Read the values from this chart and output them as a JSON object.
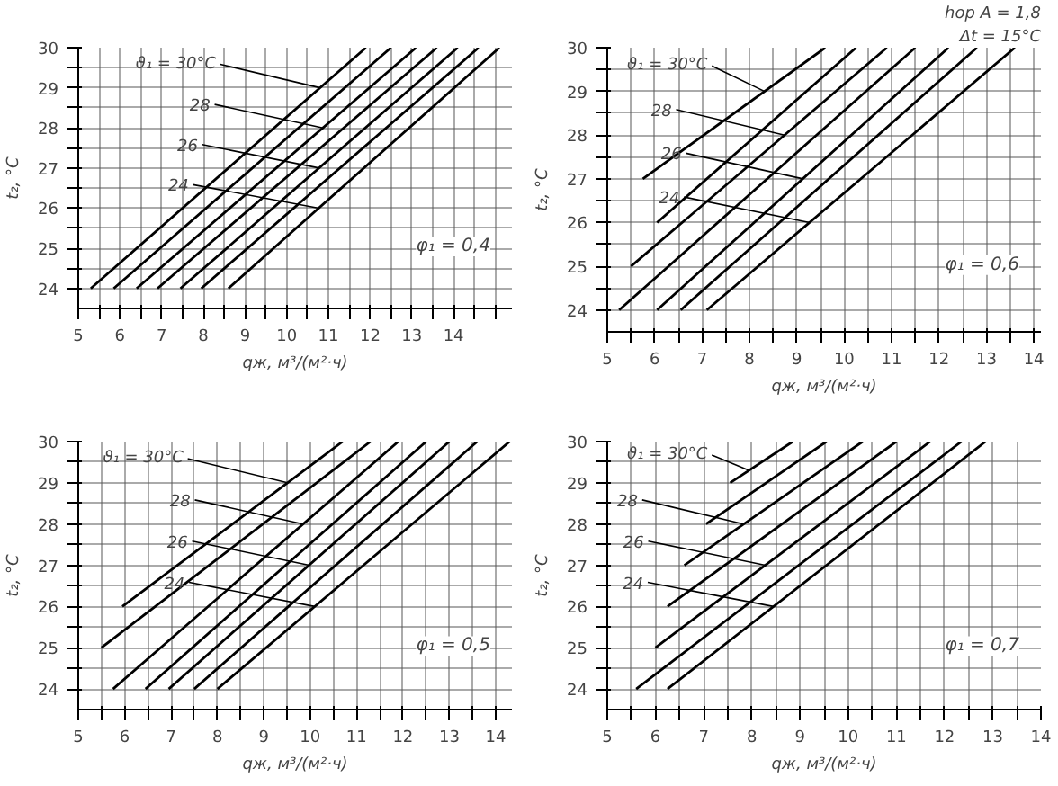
{
  "chart_data": [
    {
      "type": "line",
      "xlabel": "qж, м³/(м²·ч)",
      "ylabel": "t₂, °C",
      "xlim": [
        5,
        15.4
      ],
      "ylim": [
        23.5,
        30
      ],
      "annotations": [
        {
          "text": "ϑ₁ = 30°C",
          "x": 10.8,
          "y": 29
        },
        {
          "text": "28",
          "x": 10.87,
          "y": 28
        },
        {
          "text": "26",
          "x": 10.78,
          "y": 27
        },
        {
          "text": "24",
          "x": 10.77,
          "y": 26
        },
        "φ₁ = 0,4"
      ],
      "xticks": [
        5,
        {
          "value": 5.5,
          "label": null
        },
        6,
        {
          "value": 6.5,
          "label": null
        },
        7,
        {
          "value": 7.5,
          "label": null
        },
        8,
        {
          "value": 8.5,
          "label": null
        },
        9,
        {
          "value": 9.5,
          "label": null
        },
        10,
        {
          "value": 10.5,
          "label": null
        },
        11,
        {
          "value": 11.5,
          "label": null
        },
        12,
        {
          "value": 12.5,
          "label": null
        },
        13,
        {
          "value": 13.5,
          "label": null
        },
        14,
        {
          "value": 14.5,
          "label": null
        },
        {
          "value": 15,
          "label": null
        }
      ],
      "yticks": [
        24,
        {
          "value": 24.5,
          "label": null
        },
        25,
        {
          "value": 25.5,
          "label": null
        },
        26,
        {
          "value": 26.5,
          "label": null
        },
        27,
        {
          "value": 27.5,
          "label": null
        },
        28,
        {
          "value": 28.5,
          "label": null
        },
        29,
        {
          "value": 29.5,
          "label": null
        },
        30
      ],
      "grid": true,
      "line_style": "solid",
      "marker": "none",
      "series": [
        {
          "color": "#000000",
          "x": [
            5.3,
            11.9
          ],
          "values": [
            24,
            30
          ]
        },
        {
          "color": "#000000",
          "x": [
            5.85,
            12.5
          ],
          "values": [
            24,
            30
          ]
        },
        {
          "color": "#000000",
          "x": [
            6.4,
            13.1
          ],
          "values": [
            24,
            30
          ]
        },
        {
          "color": "#000000",
          "x": [
            6.9,
            13.6
          ],
          "values": [
            24,
            30
          ]
        },
        {
          "color": "#000000",
          "x": [
            7.45,
            14.1
          ],
          "values": [
            24,
            30
          ]
        },
        {
          "color": "#000000",
          "x": [
            7.95,
            14.6
          ],
          "values": [
            24,
            30
          ]
        },
        {
          "color": "#000000",
          "x": [
            8.6,
            15.1
          ],
          "values": [
            24,
            30
          ]
        }
      ]
    },
    {
      "type": "line",
      "xlabel": "qж, м³/(м²·ч)",
      "ylabel": "t₂, °C",
      "xlim": [
        5,
        14.15
      ],
      "ylim": [
        23.5,
        30
      ],
      "annotations": [
        "hор A = 1,8",
        "Δt = 15°C",
        {
          "text": "ϑ₁ = 30°C",
          "x": 8.32,
          "y": 29
        },
        {
          "text": "28",
          "x": 8.74,
          "y": 28
        },
        {
          "text": "26",
          "x": 9.13,
          "y": 27
        },
        {
          "text": "24",
          "x": 9.27,
          "y": 26
        },
        "φ₁ = 0,6"
      ],
      "xticks": [
        5,
        {
          "value": 5.5,
          "label": null
        },
        6,
        {
          "value": 6.5,
          "label": null
        },
        7,
        {
          "value": 7.5,
          "label": null
        },
        8,
        {
          "value": 8.5,
          "label": null
        },
        9,
        {
          "value": 9.5,
          "label": null
        },
        10,
        {
          "value": 10.5,
          "label": null
        },
        11,
        {
          "value": 11.5,
          "label": null
        },
        12,
        {
          "value": 12.5,
          "label": null
        },
        13,
        {
          "value": 13.5,
          "label": null
        },
        14
      ],
      "yticks": [
        24,
        {
          "value": 24.5,
          "label": null
        },
        25,
        {
          "value": 25.5,
          "label": null
        },
        26,
        {
          "value": 26.5,
          "label": null
        },
        27,
        {
          "value": 27.5,
          "label": null
        },
        28,
        {
          "value": 28.5,
          "label": null
        },
        29,
        {
          "value": 29.5,
          "label": null
        },
        30
      ],
      "grid": true,
      "line_style": "solid",
      "marker": "none",
      "series": [
        {
          "color": "#000000",
          "x": [
            5.75,
            9.6
          ],
          "values": [
            27,
            30
          ]
        },
        {
          "color": "#000000",
          "x": [
            6.05,
            10.25
          ],
          "values": [
            26,
            30
          ]
        },
        {
          "color": "#000000",
          "x": [
            5.5,
            10.9
          ],
          "values": [
            25,
            30
          ]
        },
        {
          "color": "#000000",
          "x": [
            5.25,
            11.5
          ],
          "values": [
            24,
            30
          ]
        },
        {
          "color": "#000000",
          "x": [
            6.05,
            12.2
          ],
          "values": [
            24,
            30
          ]
        },
        {
          "color": "#000000",
          "x": [
            6.55,
            12.8
          ],
          "values": [
            24,
            30
          ]
        },
        {
          "color": "#000000",
          "x": [
            7.1,
            13.6
          ],
          "values": [
            24,
            30
          ]
        }
      ]
    },
    {
      "type": "line",
      "xlabel": "qж, м³/(м²·ч)",
      "ylabel": "t₂, °C",
      "xlim": [
        5,
        14.35
      ],
      "ylim": [
        23.5,
        30
      ],
      "annotations": [
        {
          "text": "ϑ₁ = 30°C",
          "x": 9.51,
          "y": 29
        },
        {
          "text": "28",
          "x": 9.85,
          "y": 28
        },
        {
          "text": "26",
          "x": 9.98,
          "y": 27
        },
        {
          "text": "24",
          "x": 10.1,
          "y": 26
        },
        "φ₁ = 0,5"
      ],
      "xticks": [
        5,
        {
          "value": 5.5,
          "label": null
        },
        6,
        {
          "value": 6.5,
          "label": null
        },
        7,
        {
          "value": 7.5,
          "label": null
        },
        8,
        {
          "value": 8.5,
          "label": null
        },
        9,
        {
          "value": 9.5,
          "label": null
        },
        10,
        {
          "value": 10.5,
          "label": null
        },
        11,
        {
          "value": 11.5,
          "label": null
        },
        12,
        {
          "value": 12.5,
          "label": null
        },
        13,
        {
          "value": 13.5,
          "label": null
        },
        14
      ],
      "yticks": [
        24,
        {
          "value": 24.5,
          "label": null
        },
        25,
        {
          "value": 25.5,
          "label": null
        },
        26,
        {
          "value": 26.5,
          "label": null
        },
        27,
        {
          "value": 27.5,
          "label": null
        },
        28,
        {
          "value": 28.5,
          "label": null
        },
        29,
        {
          "value": 29.5,
          "label": null
        },
        30
      ],
      "grid": true,
      "line_style": "solid",
      "marker": "none",
      "series": [
        {
          "color": "#000000",
          "x": [
            5.95,
            10.7
          ],
          "values": [
            26,
            30
          ]
        },
        {
          "color": "#000000",
          "x": [
            5.5,
            11.3
          ],
          "values": [
            25,
            30
          ]
        },
        {
          "color": "#000000",
          "x": [
            5.75,
            11.9
          ],
          "values": [
            24,
            30
          ]
        },
        {
          "color": "#000000",
          "x": [
            6.45,
            12.5
          ],
          "values": [
            24,
            30
          ]
        },
        {
          "color": "#000000",
          "x": [
            6.95,
            13.0
          ],
          "values": [
            24,
            30
          ]
        },
        {
          "color": "#000000",
          "x": [
            7.5,
            13.6
          ],
          "values": [
            24,
            30
          ]
        },
        {
          "color": "#000000",
          "x": [
            8.0,
            14.3
          ],
          "values": [
            24,
            30
          ]
        }
      ]
    },
    {
      "type": "line",
      "xlabel": "qж, м³/(м²·ч)",
      "ylabel": "t₂, °C",
      "xlim": [
        5,
        14.0
      ],
      "ylim": [
        23.5,
        30
      ],
      "annotations": [
        {
          "text": "ϑ₁ = 30°C",
          "x": 7.94,
          "y": 29.3
        },
        {
          "text": "28",
          "x": 7.83,
          "y": 28
        },
        {
          "text": "26",
          "x": 8.28,
          "y": 27
        },
        {
          "text": "24",
          "x": 8.45,
          "y": 26
        },
        "φ₁ = 0,7"
      ],
      "xticks": [
        5,
        {
          "value": 5.5,
          "label": null
        },
        6,
        {
          "value": 6.5,
          "label": null
        },
        7,
        {
          "value": 7.5,
          "label": null
        },
        8,
        {
          "value": 8.5,
          "label": null
        },
        9,
        {
          "value": 9.5,
          "label": null
        },
        10,
        {
          "value": 10.5,
          "label": null
        },
        11,
        {
          "value": 11.5,
          "label": null
        },
        12,
        {
          "value": 12.5,
          "label": null
        },
        13,
        {
          "value": 13.5,
          "label": null
        },
        14
      ],
      "yticks": [
        24,
        {
          "value": 24.5,
          "label": null
        },
        25,
        {
          "value": 25.5,
          "label": null
        },
        26,
        {
          "value": 26.5,
          "label": null
        },
        27,
        {
          "value": 27.5,
          "label": null
        },
        28,
        {
          "value": 28.5,
          "label": null
        },
        29,
        {
          "value": 29.5,
          "label": null
        },
        30
      ],
      "grid": true,
      "line_style": "solid",
      "marker": "none",
      "series": [
        {
          "color": "#000000",
          "x": [
            7.55,
            8.85
          ],
          "values": [
            29,
            30
          ]
        },
        {
          "color": "#000000",
          "x": [
            7.05,
            9.55
          ],
          "values": [
            28,
            30
          ]
        },
        {
          "color": "#000000",
          "x": [
            6.6,
            10.3
          ],
          "values": [
            27,
            30
          ]
        },
        {
          "color": "#000000",
          "x": [
            6.25,
            11.0
          ],
          "values": [
            26,
            30
          ]
        },
        {
          "color": "#000000",
          "x": [
            6.0,
            11.7
          ],
          "values": [
            25,
            30
          ]
        },
        {
          "color": "#000000",
          "x": [
            5.6,
            12.35
          ],
          "values": [
            24,
            30
          ]
        },
        {
          "color": "#000000",
          "x": [
            6.25,
            12.85
          ],
          "values": [
            24,
            30
          ]
        }
      ]
    }
  ]
}
